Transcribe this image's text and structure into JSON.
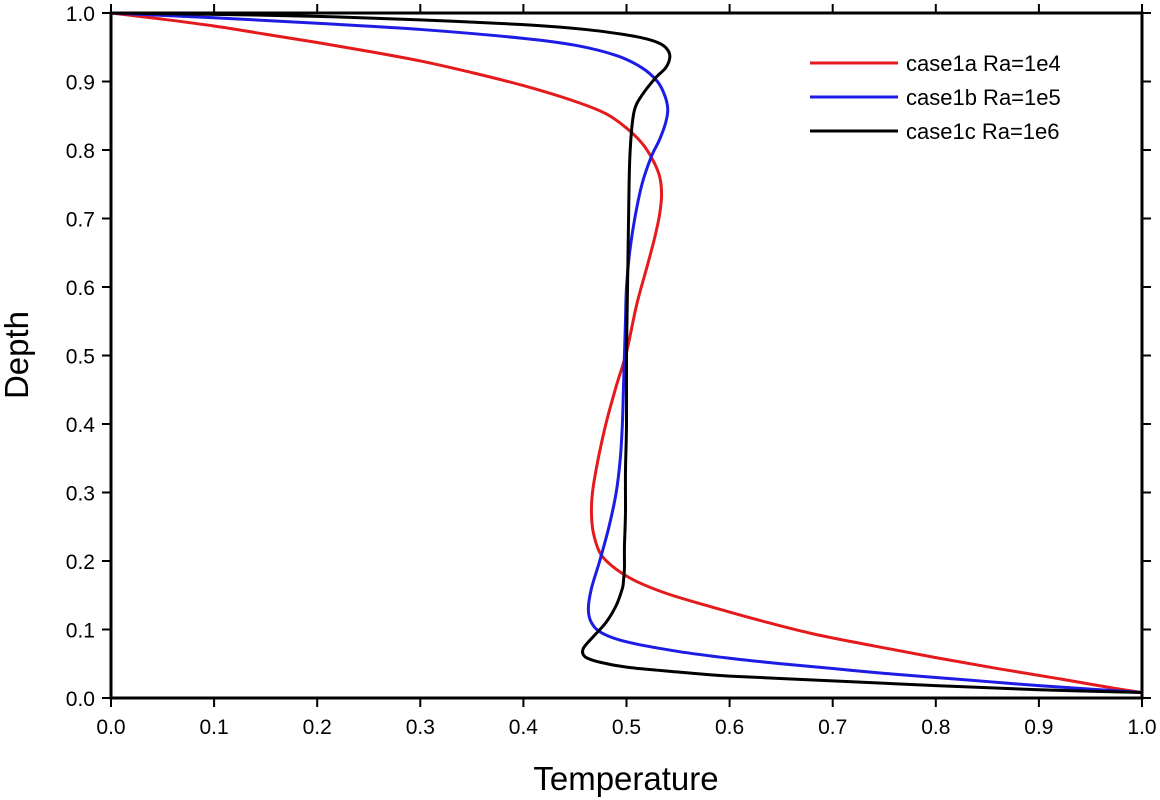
{
  "chart_data": {
    "type": "line",
    "title": "",
    "xlabel": "Temperature",
    "ylabel": "Depth",
    "xlim": [
      0.0,
      1.0
    ],
    "ylim": [
      0.0,
      1.0
    ],
    "xticks": [
      0.0,
      0.1,
      0.2,
      0.3,
      0.4,
      0.5,
      0.6,
      0.7,
      0.8,
      0.9,
      1.0
    ],
    "yticks": [
      0.0,
      0.1,
      0.2,
      0.3,
      0.4,
      0.5,
      0.6,
      0.7,
      0.8,
      0.9,
      1.0
    ],
    "xtick_labels": [
      "0.0",
      "0.1",
      "0.2",
      "0.3",
      "0.4",
      "0.5",
      "0.6",
      "0.7",
      "0.8",
      "0.9",
      "1.0"
    ],
    "ytick_labels": [
      "0.0",
      "0.1",
      "0.2",
      "0.3",
      "0.4",
      "0.5",
      "0.6",
      "0.7",
      "0.8",
      "0.9",
      "1.0"
    ],
    "grid": false,
    "legend_position": "top-right",
    "series": [
      {
        "name": "case1a Ra=1e4",
        "color": "#e41a1c",
        "x": [
          0.0,
          0.05,
          0.1,
          0.15,
          0.2,
          0.25,
          0.3,
          0.35,
          0.4,
          0.45,
          0.48,
          0.5,
          0.515,
          0.525,
          0.532,
          0.534,
          0.532,
          0.527,
          0.52,
          0.51,
          0.5,
          0.49,
          0.48,
          0.472,
          0.467,
          0.466,
          0.468,
          0.475,
          0.49,
          0.51,
          0.54,
          0.58,
          0.63,
          0.68,
          0.74,
          0.8,
          0.86,
          0.92,
          0.97,
          1.0
        ],
        "y": [
          1.0,
          0.991,
          0.981,
          0.969,
          0.957,
          0.944,
          0.93,
          0.913,
          0.894,
          0.871,
          0.853,
          0.832,
          0.81,
          0.787,
          0.762,
          0.735,
          0.705,
          0.67,
          0.63,
          0.575,
          0.505,
          0.455,
          0.4,
          0.345,
          0.3,
          0.27,
          0.24,
          0.21,
          0.188,
          0.17,
          0.152,
          0.134,
          0.113,
          0.094,
          0.076,
          0.059,
          0.043,
          0.028,
          0.015,
          0.008
        ]
      },
      {
        "name": "case1b Ra=1e5",
        "color": "#1c1ce4",
        "x": [
          0.0,
          0.1,
          0.2,
          0.3,
          0.4,
          0.45,
          0.49,
          0.515,
          0.53,
          0.537,
          0.54,
          0.538,
          0.532,
          0.524,
          0.515,
          0.508,
          0.503,
          0.5,
          0.499,
          0.498,
          0.497,
          0.496,
          0.494,
          0.49,
          0.483,
          0.474,
          0.466,
          0.463,
          0.466,
          0.476,
          0.5,
          0.55,
          0.6,
          0.65,
          0.7,
          0.75,
          0.8,
          0.85,
          0.9,
          0.95,
          1.0
        ],
        "y": [
          1.0,
          0.993,
          0.985,
          0.976,
          0.963,
          0.953,
          0.938,
          0.92,
          0.9,
          0.88,
          0.86,
          0.84,
          0.815,
          0.79,
          0.75,
          0.7,
          0.65,
          0.6,
          0.55,
          0.5,
          0.45,
          0.4,
          0.35,
          0.3,
          0.25,
          0.2,
          0.16,
          0.13,
          0.11,
          0.095,
          0.082,
          0.068,
          0.058,
          0.05,
          0.043,
          0.036,
          0.03,
          0.024,
          0.018,
          0.013,
          0.008
        ]
      },
      {
        "name": "case1c Ra=1e6",
        "color": "#000000",
        "x": [
          0.0,
          0.1,
          0.2,
          0.3,
          0.4,
          0.46,
          0.5,
          0.52,
          0.533,
          0.54,
          0.542,
          0.538,
          0.528,
          0.515,
          0.508,
          0.505,
          0.503,
          0.502,
          0.501,
          0.5,
          0.5,
          0.499,
          0.499,
          0.498,
          0.498,
          0.497,
          0.496,
          0.49,
          0.48,
          0.468,
          0.458,
          0.46,
          0.475,
          0.5,
          0.55,
          0.6,
          0.7,
          0.8,
          0.9,
          1.0
        ],
        "y": [
          1.0,
          0.998,
          0.995,
          0.99,
          0.983,
          0.976,
          0.968,
          0.962,
          0.955,
          0.946,
          0.935,
          0.92,
          0.905,
          0.88,
          0.86,
          0.83,
          0.78,
          0.7,
          0.6,
          0.5,
          0.4,
          0.33,
          0.27,
          0.22,
          0.19,
          0.17,
          0.16,
          0.135,
          0.11,
          0.09,
          0.072,
          0.06,
          0.052,
          0.045,
          0.038,
          0.032,
          0.025,
          0.018,
          0.012,
          0.008
        ]
      }
    ]
  }
}
